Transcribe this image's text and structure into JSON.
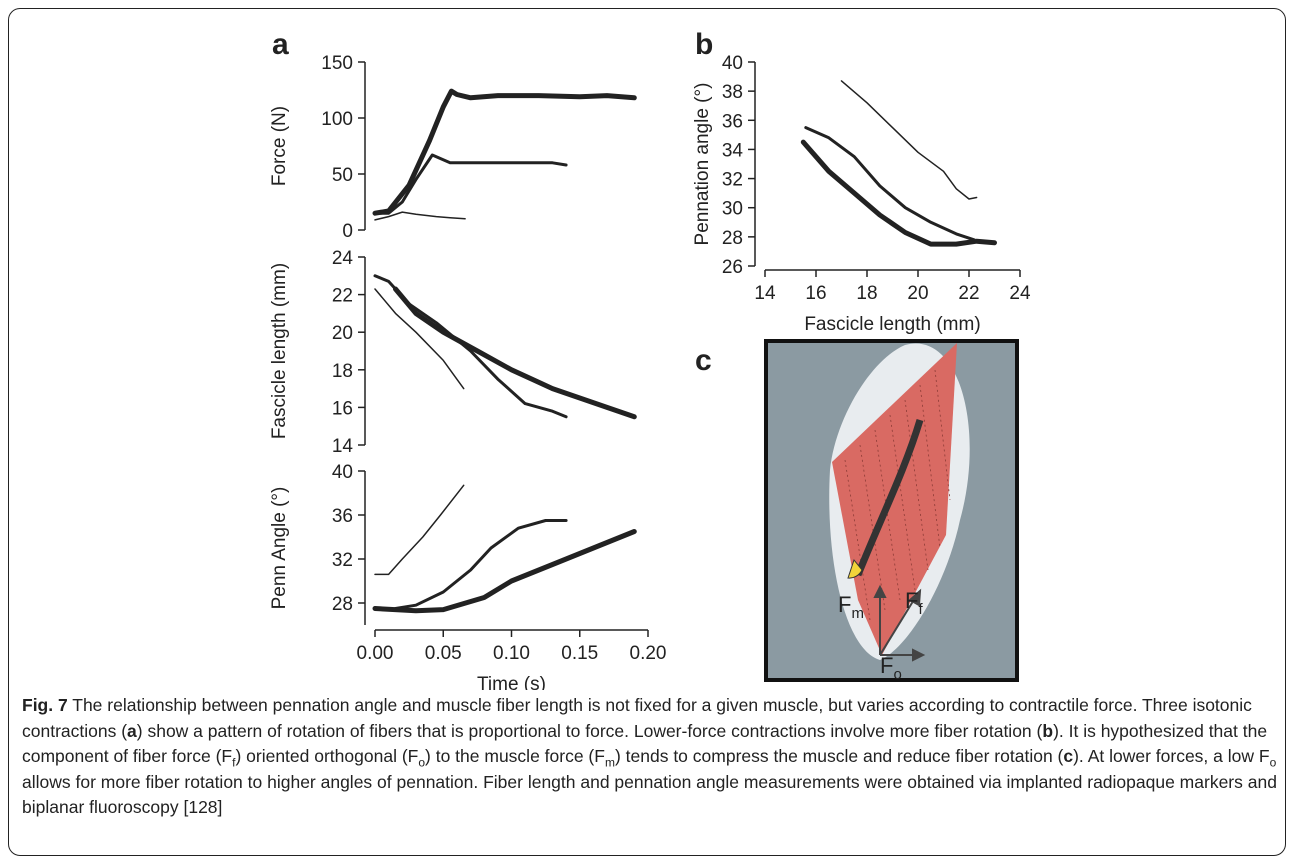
{
  "chart_data": [
    {
      "type": "line",
      "ylabel": "Force (N)",
      "xlim": [
        0,
        0.2
      ],
      "ylim": [
        0,
        150
      ],
      "yticks": [
        0,
        50,
        100,
        150
      ],
      "series": [
        {
          "color": "#222222",
          "line_width": 1.5,
          "x": [
            0,
            0.01,
            0.02,
            0.03,
            0.045,
            0.055,
            0.066
          ],
          "values": [
            9,
            12,
            16,
            14,
            12,
            11,
            10
          ]
        },
        {
          "color": "#222222",
          "line_width": 3,
          "x": [
            0,
            0.01,
            0.02,
            0.03,
            0.042,
            0.055,
            0.08,
            0.11,
            0.13,
            0.14
          ],
          "values": [
            15,
            15,
            25,
            45,
            67,
            60,
            60,
            60,
            60,
            58
          ]
        },
        {
          "color": "#222222",
          "line_width": 5,
          "x": [
            0,
            0.01,
            0.025,
            0.04,
            0.05,
            0.056,
            0.06,
            0.07,
            0.09,
            0.12,
            0.15,
            0.17,
            0.19
          ],
          "values": [
            15,
            17,
            40,
            80,
            110,
            124,
            121,
            118,
            120,
            120,
            119,
            120,
            118
          ]
        }
      ]
    },
    {
      "type": "line",
      "ylabel": "Fascicle length (mm)",
      "xlim": [
        0,
        0.2
      ],
      "ylim": [
        14,
        24
      ],
      "yticks": [
        14,
        16,
        18,
        20,
        22,
        24
      ],
      "series": [
        {
          "color": "#222222",
          "line_width": 1.5,
          "x": [
            0,
            0.015,
            0.03,
            0.05,
            0.065
          ],
          "values": [
            22.3,
            21,
            20,
            18.5,
            17
          ]
        },
        {
          "color": "#222222",
          "line_width": 3,
          "x": [
            0,
            0.01,
            0.025,
            0.045,
            0.07,
            0.09,
            0.11,
            0.13,
            0.14
          ],
          "values": [
            23,
            22.7,
            21.5,
            20.5,
            19,
            17.5,
            16.2,
            15.8,
            15.5
          ]
        },
        {
          "color": "#222222",
          "line_width": 5,
          "x": [
            0.015,
            0.03,
            0.05,
            0.075,
            0.1,
            0.13,
            0.17,
            0.19
          ],
          "values": [
            22.3,
            21,
            20,
            19,
            18,
            17,
            16,
            15.5
          ]
        }
      ]
    },
    {
      "type": "line",
      "ylabel": "Penn Angle (°)",
      "xlabel": "Time (s)",
      "xlim": [
        0,
        0.2
      ],
      "ylim": [
        26,
        40
      ],
      "yticks": [
        28,
        32,
        36,
        40
      ],
      "xticks": [
        {
          "value": 0,
          "label": "0.00"
        },
        0.05,
        {
          "value": 0.1,
          "label": "0.10"
        },
        0.15,
        {
          "value": 0.2,
          "label": "0.20"
        }
      ],
      "series": [
        {
          "color": "#222222",
          "line_width": 1.5,
          "x": [
            0,
            0.01,
            0.02,
            0.035,
            0.048,
            0.065
          ],
          "values": [
            30.6,
            30.6,
            32,
            34,
            36,
            38.7
          ]
        },
        {
          "color": "#222222",
          "line_width": 3,
          "x": [
            0.015,
            0.03,
            0.05,
            0.07,
            0.085,
            0.105,
            0.125,
            0.14
          ],
          "values": [
            27.5,
            27.8,
            29,
            31,
            33,
            34.8,
            35.5,
            35.5
          ]
        },
        {
          "color": "#222222",
          "line_width": 5,
          "x": [
            0,
            0.03,
            0.05,
            0.08,
            0.1,
            0.13,
            0.16,
            0.19
          ],
          "values": [
            27.5,
            27.3,
            27.4,
            28.5,
            30,
            31.5,
            33,
            34.5
          ]
        }
      ]
    },
    {
      "type": "line",
      "ylabel": "Pennation angle (°)",
      "xlabel": "Fascicle length (mm)",
      "xlim": [
        14,
        24
      ],
      "ylim": [
        26,
        40
      ],
      "xticks": [
        14,
        16,
        18,
        20,
        22,
        24
      ],
      "yticks": [
        26,
        28,
        30,
        32,
        34,
        36,
        38,
        40
      ],
      "series": [
        {
          "color": "#222222",
          "line_width": 1.5,
          "x": [
            17,
            18,
            19,
            20,
            21,
            21.5,
            22,
            22.3
          ],
          "values": [
            38.7,
            37.2,
            35.5,
            33.8,
            32.5,
            31.3,
            30.6,
            30.7
          ]
        },
        {
          "color": "#222222",
          "line_width": 3,
          "x": [
            15.6,
            16.5,
            17.5,
            18.5,
            19.5,
            20.5,
            21.5,
            22.2
          ],
          "values": [
            35.5,
            34.8,
            33.5,
            31.5,
            30,
            29,
            28.2,
            27.8
          ]
        },
        {
          "color": "#222222",
          "line_width": 5,
          "x": [
            15.5,
            16.5,
            17.5,
            18.5,
            19.5,
            20.5,
            21.5,
            22.3,
            23
          ],
          "values": [
            34.5,
            32.5,
            31,
            29.5,
            28.3,
            27.5,
            27.5,
            27.7,
            27.6
          ]
        }
      ]
    }
  ],
  "panel_labels": [
    "a",
    "b",
    "c"
  ],
  "illustration": {
    "labels": [
      {
        "base": "F",
        "sub": "m"
      },
      {
        "base": "F",
        "sub": "f"
      },
      {
        "base": "F",
        "sub": "o"
      }
    ]
  },
  "caption": [
    {
      "text": "Fig. 7",
      "style": "bold"
    },
    {
      "text": " The relationship between pennation angle and muscle fiber length is not fixed for a given muscle, but varies according to contractile force. Three isotonic contractions (",
      "style": "normal"
    },
    {
      "text": "a",
      "style": "bold"
    },
    {
      "text": ") show a pattern of rotation of fibers that is proportional to force. Lower-force contractions involve more fiber rotation (",
      "style": "normal"
    },
    {
      "text": "b",
      "style": "bold"
    },
    {
      "text": "). It is hypothesized that the component of fiber force (F",
      "style": "normal"
    },
    {
      "text": "f",
      "style": "sub"
    },
    {
      "text": ") oriented orthogonal (F",
      "style": "normal"
    },
    {
      "text": "o",
      "style": "sub"
    },
    {
      "text": ") to the muscle force (F",
      "style": "normal"
    },
    {
      "text": "m",
      "style": "sub"
    },
    {
      "text": ") tends to compress the muscle and reduce fiber rotation (",
      "style": "normal"
    },
    {
      "text": "c",
      "style": "bold"
    },
    {
      "text": "). At lower forces, a low F",
      "style": "normal"
    },
    {
      "text": "o",
      "style": "sub"
    },
    {
      "text": " allows for more fiber rotation to higher angles of pennation. Fiber length and pennation angle measurements were obtained via implanted radiopaque markers and biplanar fluoroscopy [128]",
      "style": "normal"
    }
  ]
}
